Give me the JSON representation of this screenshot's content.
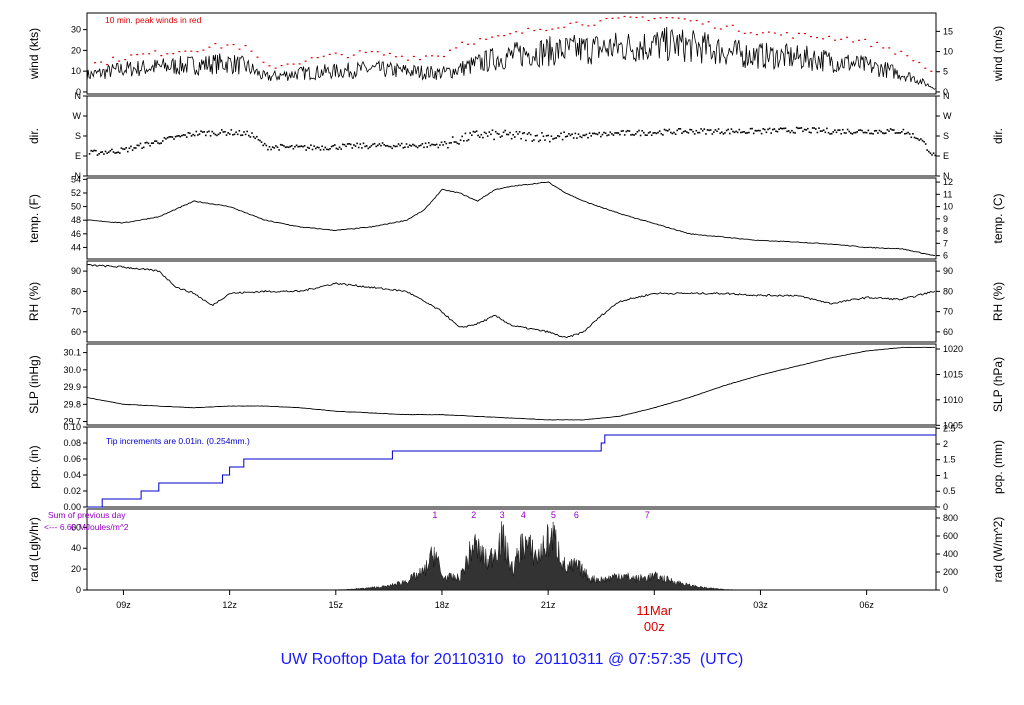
{
  "title": "UW Rooftop Data for 20110310  to  20110311 @ 07:57:35  (UTC)",
  "colors": {
    "line": "#000000",
    "peak": "#dd0000",
    "pcp": "#0000cc",
    "title": "#1a1aff",
    "sun": "#9900cc",
    "date": "#dd0000",
    "fill": "#333333"
  },
  "x_axis": {
    "tick_labels": [
      "09z",
      "12z",
      "15z",
      "18z",
      "21z",
      "03z",
      "06z"
    ],
    "tick_hours": [
      9,
      12,
      15,
      18,
      21,
      27,
      30
    ],
    "midnight_hour": 24,
    "midnight_date": "11Mar",
    "midnight_label": "00z",
    "x_range_hours": [
      7.97,
      31.96
    ]
  },
  "annotations": {
    "wind_note": "10 min. peak winds in red",
    "pcp_note": "Tip increments are 0.01in. (0.254mm.)",
    "rad_note_line1": "Sum of previous day",
    "rad_note_line2": "<--- 6.60 MJoules/m^2",
    "sun_markers": [
      {
        "label": "1",
        "hour": 17.8
      },
      {
        "label": "2",
        "hour": 18.9
      },
      {
        "label": "3",
        "hour": 19.7
      },
      {
        "label": "4",
        "hour": 20.3
      },
      {
        "label": "5",
        "hour": 21.15
      },
      {
        "label": "6",
        "hour": 21.8
      },
      {
        "label": "7",
        "hour": 23.8
      }
    ]
  },
  "chart_data": [
    {
      "type": "line",
      "id": "wind",
      "ylabel_left": "wind (kts)",
      "ylabel_right": "wind (m/s)",
      "ylim": [
        -1,
        38
      ],
      "yticks_left": [
        0,
        10,
        20,
        30
      ],
      "right_ticks": [
        {
          "label": "0",
          "v": 0
        },
        {
          "label": "5",
          "v": 9.72
        },
        {
          "label": "10",
          "v": 19.44
        },
        {
          "label": "15",
          "v": 29.16
        }
      ],
      "series": [
        {
          "x": [
            7.97,
            9,
            10,
            11,
            12,
            12.5,
            13,
            14,
            15,
            16,
            17,
            18,
            18.5,
            19.5,
            20.5,
            21.5,
            22.5,
            23.5,
            24.5,
            25.5,
            26.5,
            27.5,
            28.5,
            29.5,
            30.5,
            31.3,
            31.9
          ],
          "y": [
            8,
            11,
            12,
            13,
            14,
            12,
            7,
            9,
            10,
            11,
            10,
            9,
            11,
            16,
            19,
            20,
            21,
            22,
            23,
            21,
            18,
            17,
            16,
            14,
            11,
            7,
            2
          ]
        }
      ],
      "peaks": {
        "x": [
          8.3,
          9,
          10,
          11,
          12,
          12.5,
          13,
          14,
          15,
          16,
          17,
          18,
          18.5,
          19.5,
          20.5,
          21.5,
          22.5,
          23.5,
          24.5,
          25.5,
          26.5,
          27.5,
          28.5,
          29.5,
          30.5,
          31.3,
          31.9
        ],
        "y": [
          14,
          17,
          19,
          21,
          23,
          21,
          12,
          15,
          18,
          19,
          17,
          18,
          24,
          26,
          30,
          33,
          34,
          36,
          36,
          33,
          30,
          28,
          27,
          26,
          22,
          16,
          9
        ]
      }
    },
    {
      "type": "scatter",
      "id": "dir",
      "ylabel_left": "dir.",
      "ylabel_right": "dir.",
      "ylim": [
        0,
        360
      ],
      "tick_labels": [
        "N",
        "E",
        "S",
        "W",
        "N"
      ],
      "tick_values": [
        0,
        90,
        180,
        270,
        360
      ],
      "series": [
        {
          "x": [
            8,
            9,
            10,
            11,
            12,
            12.6,
            13,
            14,
            15,
            16,
            17,
            18,
            19,
            20,
            21,
            22,
            23,
            24,
            25,
            26,
            27,
            28,
            29,
            30,
            31,
            31.5,
            31.9
          ],
          "y": [
            105,
            120,
            160,
            195,
            200,
            190,
            135,
            130,
            135,
            140,
            140,
            145,
            190,
            185,
            180,
            185,
            195,
            200,
            205,
            205,
            205,
            210,
            205,
            205,
            205,
            170,
            90
          ]
        }
      ]
    },
    {
      "type": "line",
      "id": "temp",
      "ylabel_left": "temp. (F)",
      "ylabel_right": "temp. (C)",
      "ylim": [
        42.3,
        54.2
      ],
      "yticks_left": [
        44,
        46,
        48,
        50,
        52,
        54
      ],
      "right_ticks": [
        {
          "label": "6",
          "v": 42.8
        },
        {
          "label": "7",
          "v": 44.6
        },
        {
          "label": "8",
          "v": 46.4
        },
        {
          "label": "9",
          "v": 48.2
        },
        {
          "label": "10",
          "v": 50
        },
        {
          "label": "11",
          "v": 51.8
        },
        {
          "label": "12",
          "v": 53.6
        }
      ],
      "series": [
        {
          "x": [
            7.97,
            9,
            10,
            11,
            12,
            13,
            14,
            15,
            16,
            17,
            17.5,
            18,
            18.5,
            19,
            19.5,
            20,
            21,
            21.5,
            22,
            23,
            24,
            25,
            26,
            27,
            28,
            29,
            30,
            31,
            31.9
          ],
          "y": [
            48,
            47.6,
            48.5,
            50.8,
            50,
            48,
            47,
            46.5,
            47,
            48,
            49.5,
            52.5,
            52,
            50.8,
            52.5,
            53,
            53.6,
            52,
            50.8,
            49,
            47.5,
            46,
            45.5,
            45,
            44.8,
            44.5,
            44,
            43.8,
            42.8
          ]
        }
      ]
    },
    {
      "type": "line",
      "id": "rh",
      "ylabel_left": "RH (%)",
      "ylabel_right": "RH (%)",
      "ylim": [
        55,
        95
      ],
      "yticks_left": [
        60,
        70,
        80,
        90
      ],
      "right_ticks": [
        {
          "label": "60",
          "v": 60
        },
        {
          "label": "70",
          "v": 70
        },
        {
          "label": "80",
          "v": 80
        },
        {
          "label": "90",
          "v": 90
        }
      ],
      "series": [
        {
          "x": [
            7.97,
            9,
            10,
            10.5,
            11,
            11.5,
            12,
            13,
            14,
            15,
            16,
            17,
            18,
            18.5,
            19,
            19.5,
            20,
            21,
            21.5,
            22,
            22.5,
            23,
            24,
            25,
            26,
            27,
            28,
            29,
            30,
            31,
            31.9
          ],
          "y": [
            93,
            92,
            90,
            82,
            79,
            73,
            79,
            80,
            80,
            84,
            82,
            80,
            70,
            62,
            64,
            68,
            63,
            60,
            57,
            60,
            68,
            75,
            79,
            79,
            79,
            78,
            78,
            74,
            77,
            76,
            80
          ]
        }
      ]
    },
    {
      "type": "line",
      "id": "slp",
      "ylabel_left": "SLP (inHg)",
      "ylabel_right": "SLP (hPa)",
      "ylim": [
        29.68,
        30.15
      ],
      "yticks_left": [
        29.7,
        29.8,
        29.9,
        30.0,
        30.1
      ],
      "right_ticks": [
        {
          "label": "1005",
          "v": 29.678
        },
        {
          "label": "1010",
          "v": 29.826
        },
        {
          "label": "1015",
          "v": 29.973
        },
        {
          "label": "1020",
          "v": 30.121
        }
      ],
      "series": [
        {
          "x": [
            7.97,
            9,
            10,
            11,
            12,
            13,
            14,
            15,
            16,
            17,
            18,
            19,
            20,
            21,
            22,
            23,
            24,
            25,
            26,
            27,
            28,
            29,
            30,
            31,
            31.9
          ],
          "y": [
            29.84,
            29.8,
            29.79,
            29.78,
            29.79,
            29.79,
            29.78,
            29.76,
            29.75,
            29.74,
            29.74,
            29.73,
            29.72,
            29.71,
            29.71,
            29.73,
            29.78,
            29.84,
            29.91,
            29.97,
            30.02,
            30.07,
            30.11,
            30.13,
            30.13
          ]
        }
      ]
    },
    {
      "type": "line",
      "id": "pcp",
      "ylabel_left": "pcp. (in)",
      "ylabel_right": "pcp. (mm)",
      "ylim": [
        0,
        0.1
      ],
      "yticks_left": [
        0,
        0.02,
        0.04,
        0.06,
        0.08,
        0.1
      ],
      "ytick_text": [
        "0.00",
        "0.02",
        "0.04",
        "0.06",
        "0.08",
        "0.10"
      ],
      "right_ticks": [
        {
          "label": "0",
          "v": 0
        },
        {
          "label": "0.5",
          "v": 0.0197
        },
        {
          "label": "1",
          "v": 0.0394
        },
        {
          "label": "1.5",
          "v": 0.0591
        },
        {
          "label": "2",
          "v": 0.0787
        },
        {
          "label": "2.5",
          "v": 0.0984
        }
      ],
      "series": [
        {
          "x": [
            8,
            8.4,
            8.4,
            9.5,
            9.5,
            10,
            10,
            11.8,
            11.8,
            12,
            12,
            12.4,
            12.4,
            16.6,
            16.6,
            22.5,
            22.5,
            22.6,
            22.6,
            31.96
          ],
          "y": [
            0,
            0,
            0.01,
            0.01,
            0.02,
            0.02,
            0.03,
            0.03,
            0.04,
            0.04,
            0.05,
            0.05,
            0.06,
            0.06,
            0.07,
            0.07,
            0.08,
            0.08,
            0.09,
            0.09
          ]
        }
      ]
    },
    {
      "type": "area",
      "id": "rad",
      "ylabel_left": "rad (Lgly/hr)",
      "ylabel_right": "rad (W/m^2)",
      "ylim": [
        0,
        900
      ],
      "yticks_left": [
        0,
        20,
        40,
        60
      ],
      "left_tick_values": [
        0,
        232,
        464,
        696
      ],
      "right_ticks": [
        {
          "label": "0",
          "v": 0
        },
        {
          "label": "200",
          "v": 200
        },
        {
          "label": "400",
          "v": 400
        },
        {
          "label": "600",
          "v": 600
        },
        {
          "label": "800",
          "v": 800
        }
      ],
      "series": [
        {
          "x": [
            14.4,
            15,
            15.5,
            16,
            16.5,
            17,
            17.5,
            17.8,
            18,
            18.5,
            18.9,
            19.3,
            19.7,
            20,
            20.3,
            20.7,
            21,
            21.15,
            21.5,
            21.8,
            22.2,
            22.6,
            23,
            23.5,
            24,
            24.5,
            25,
            25.5,
            26,
            26.5
          ],
          "y": [
            0,
            3,
            15,
            35,
            60,
            140,
            280,
            600,
            200,
            180,
            700,
            420,
            800,
            300,
            750,
            500,
            760,
            820,
            320,
            380,
            170,
            160,
            230,
            170,
            210,
            140,
            70,
            30,
            10,
            0
          ]
        }
      ]
    }
  ]
}
